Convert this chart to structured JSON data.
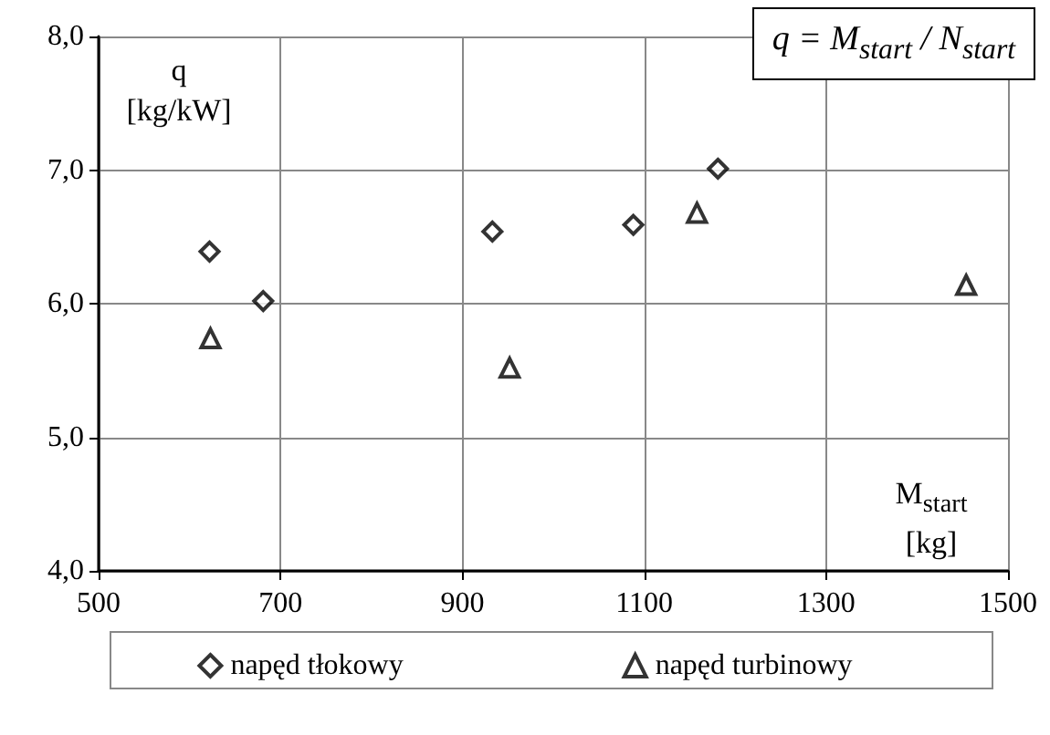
{
  "chart_data": {
    "type": "scatter",
    "xlabel": "M$_{start}$ [kg]",
    "ylabel": "q [kg/kW]",
    "annotations": [
      "q = M$_{start}$ / N$_{start}$"
    ],
    "series": [
      {
        "name": "napęd tłokowy",
        "color": "#000000",
        "marker": "diamond",
        "x": [
          622,
          681,
          933,
          1088,
          1181
        ],
        "values": [
          6.39,
          6.02,
          6.54,
          6.59,
          7.01
        ]
      },
      {
        "name": "napęd turbinowy",
        "color": "#000000",
        "marker": "triangle",
        "x": [
          623,
          952,
          1158,
          1454
        ],
        "values": [
          5.74,
          5.52,
          6.68,
          6.14
        ]
      }
    ],
    "xlim": [
      500,
      1500
    ],
    "xticks": [
      500,
      700,
      900,
      1100,
      1300,
      1500
    ],
    "ylim": [
      4,
      8
    ],
    "yticks": [
      {
        "value": 4,
        "label": "4,0"
      },
      {
        "value": 5,
        "label": "5,0"
      },
      {
        "value": 6,
        "label": "6,0"
      },
      {
        "value": 7,
        "label": "7,0"
      },
      {
        "value": 8,
        "label": "8,0"
      }
    ],
    "grid": true,
    "legend": "bottom"
  }
}
